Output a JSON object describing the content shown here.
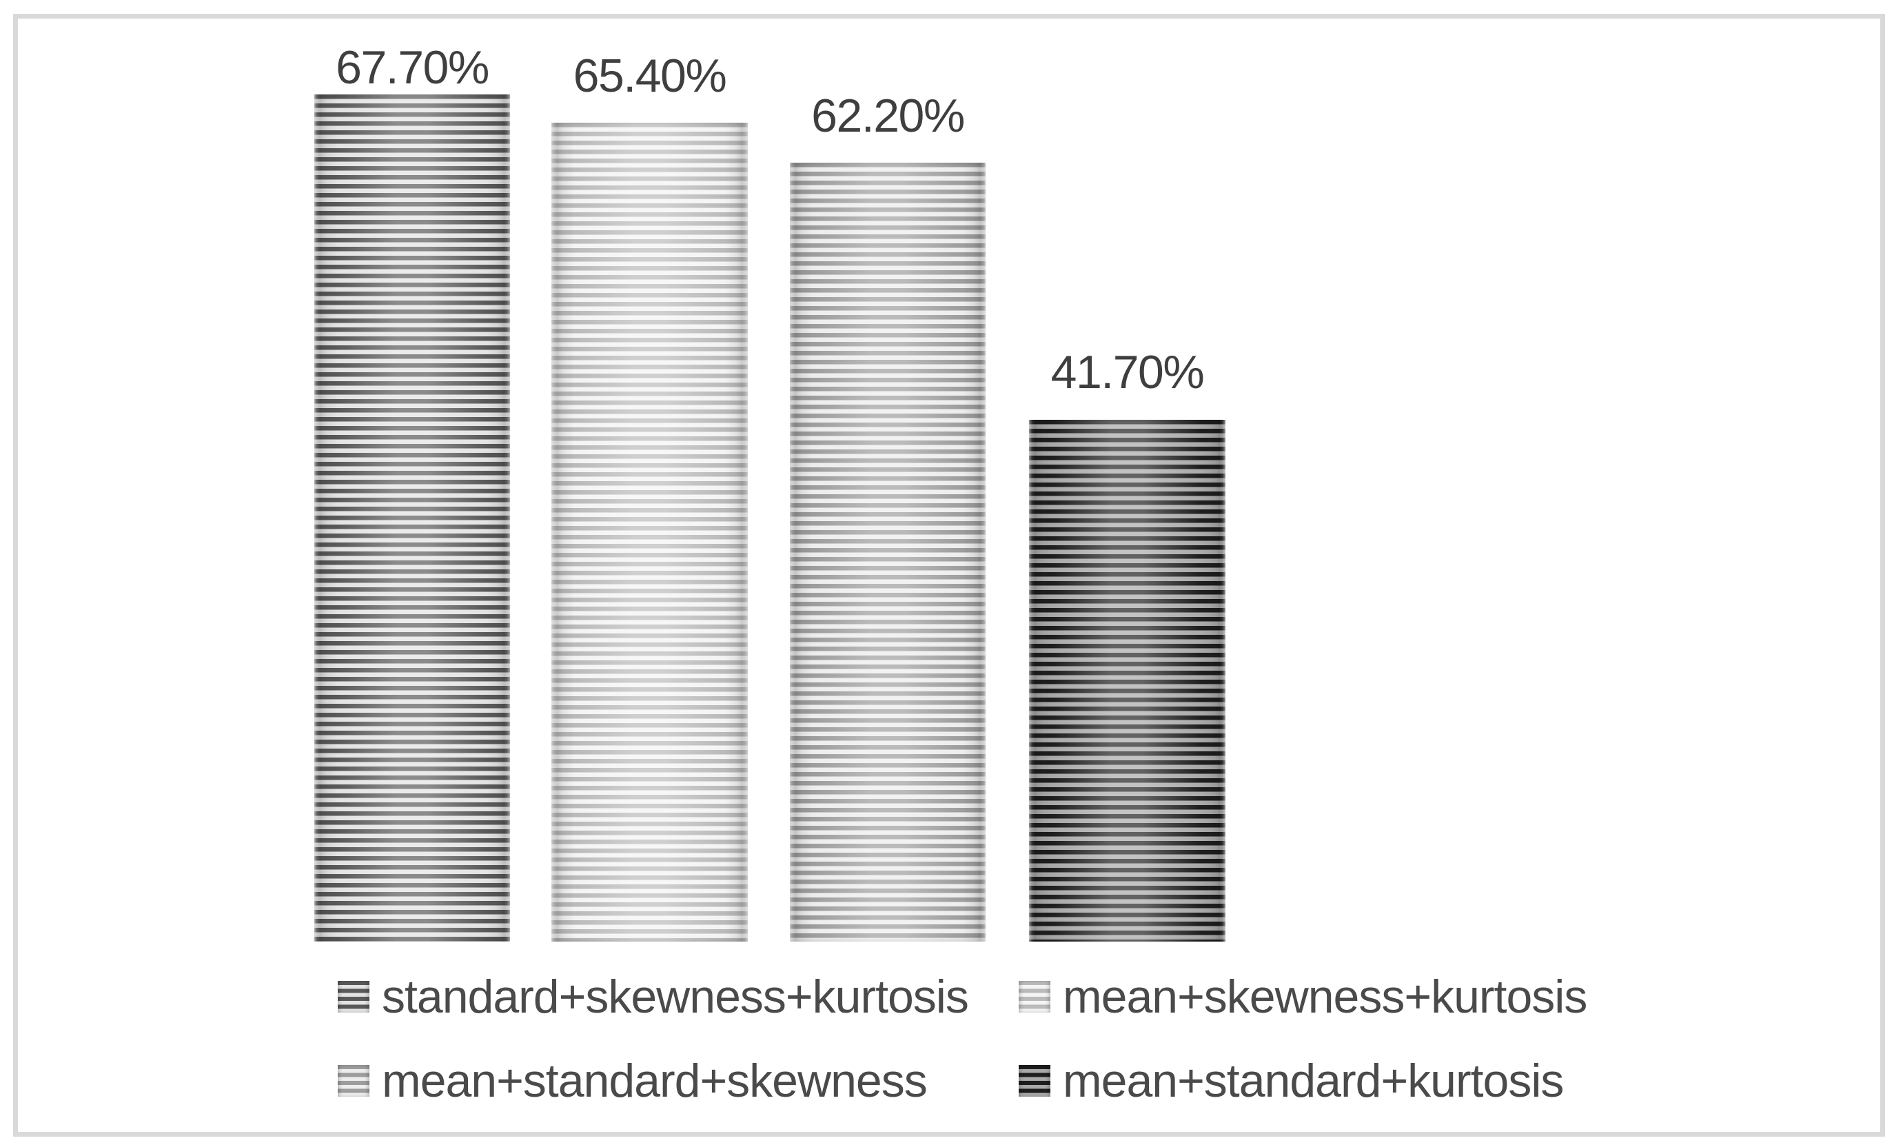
{
  "chart_data": {
    "type": "bar",
    "title": "",
    "xlabel": "",
    "ylabel": "",
    "categories": [
      "standard+skewness+kurtosis",
      "mean+skewness+kurtosis",
      "mean+standard+skewness",
      "mean+standard+kurtosis"
    ],
    "values": [
      67.7,
      65.4,
      62.2,
      41.7
    ],
    "data_labels": [
      "67.70%",
      "65.40%",
      "62.20%",
      "41.70%"
    ],
    "ylim": [
      0,
      75
    ],
    "grid": false,
    "axes_visible": false,
    "legend_position": "bottom-two-rows",
    "pattern": "horizontal-stripes",
    "series_styles": [
      {
        "name": "standard+skewness+kurtosis",
        "stripe_color": "#595959",
        "fill_color": "#e3e3e3"
      },
      {
        "name": "mean+skewness+kurtosis",
        "stripe_color": "#bababa",
        "fill_color": "#f4f4f4"
      },
      {
        "name": "mean+standard+skewness",
        "stripe_color": "#9d9d9d",
        "fill_color": "#ededed"
      },
      {
        "name": "mean+standard+kurtosis",
        "stripe_color": "#1e1e1e",
        "fill_color": "#a9a9a9"
      }
    ]
  },
  "frame": {
    "border_color": "#d9d9d9",
    "background_color": "#ffffff"
  },
  "text_colors": {
    "data_label": "#3f3f3f",
    "legend": "#4a4a4a"
  }
}
